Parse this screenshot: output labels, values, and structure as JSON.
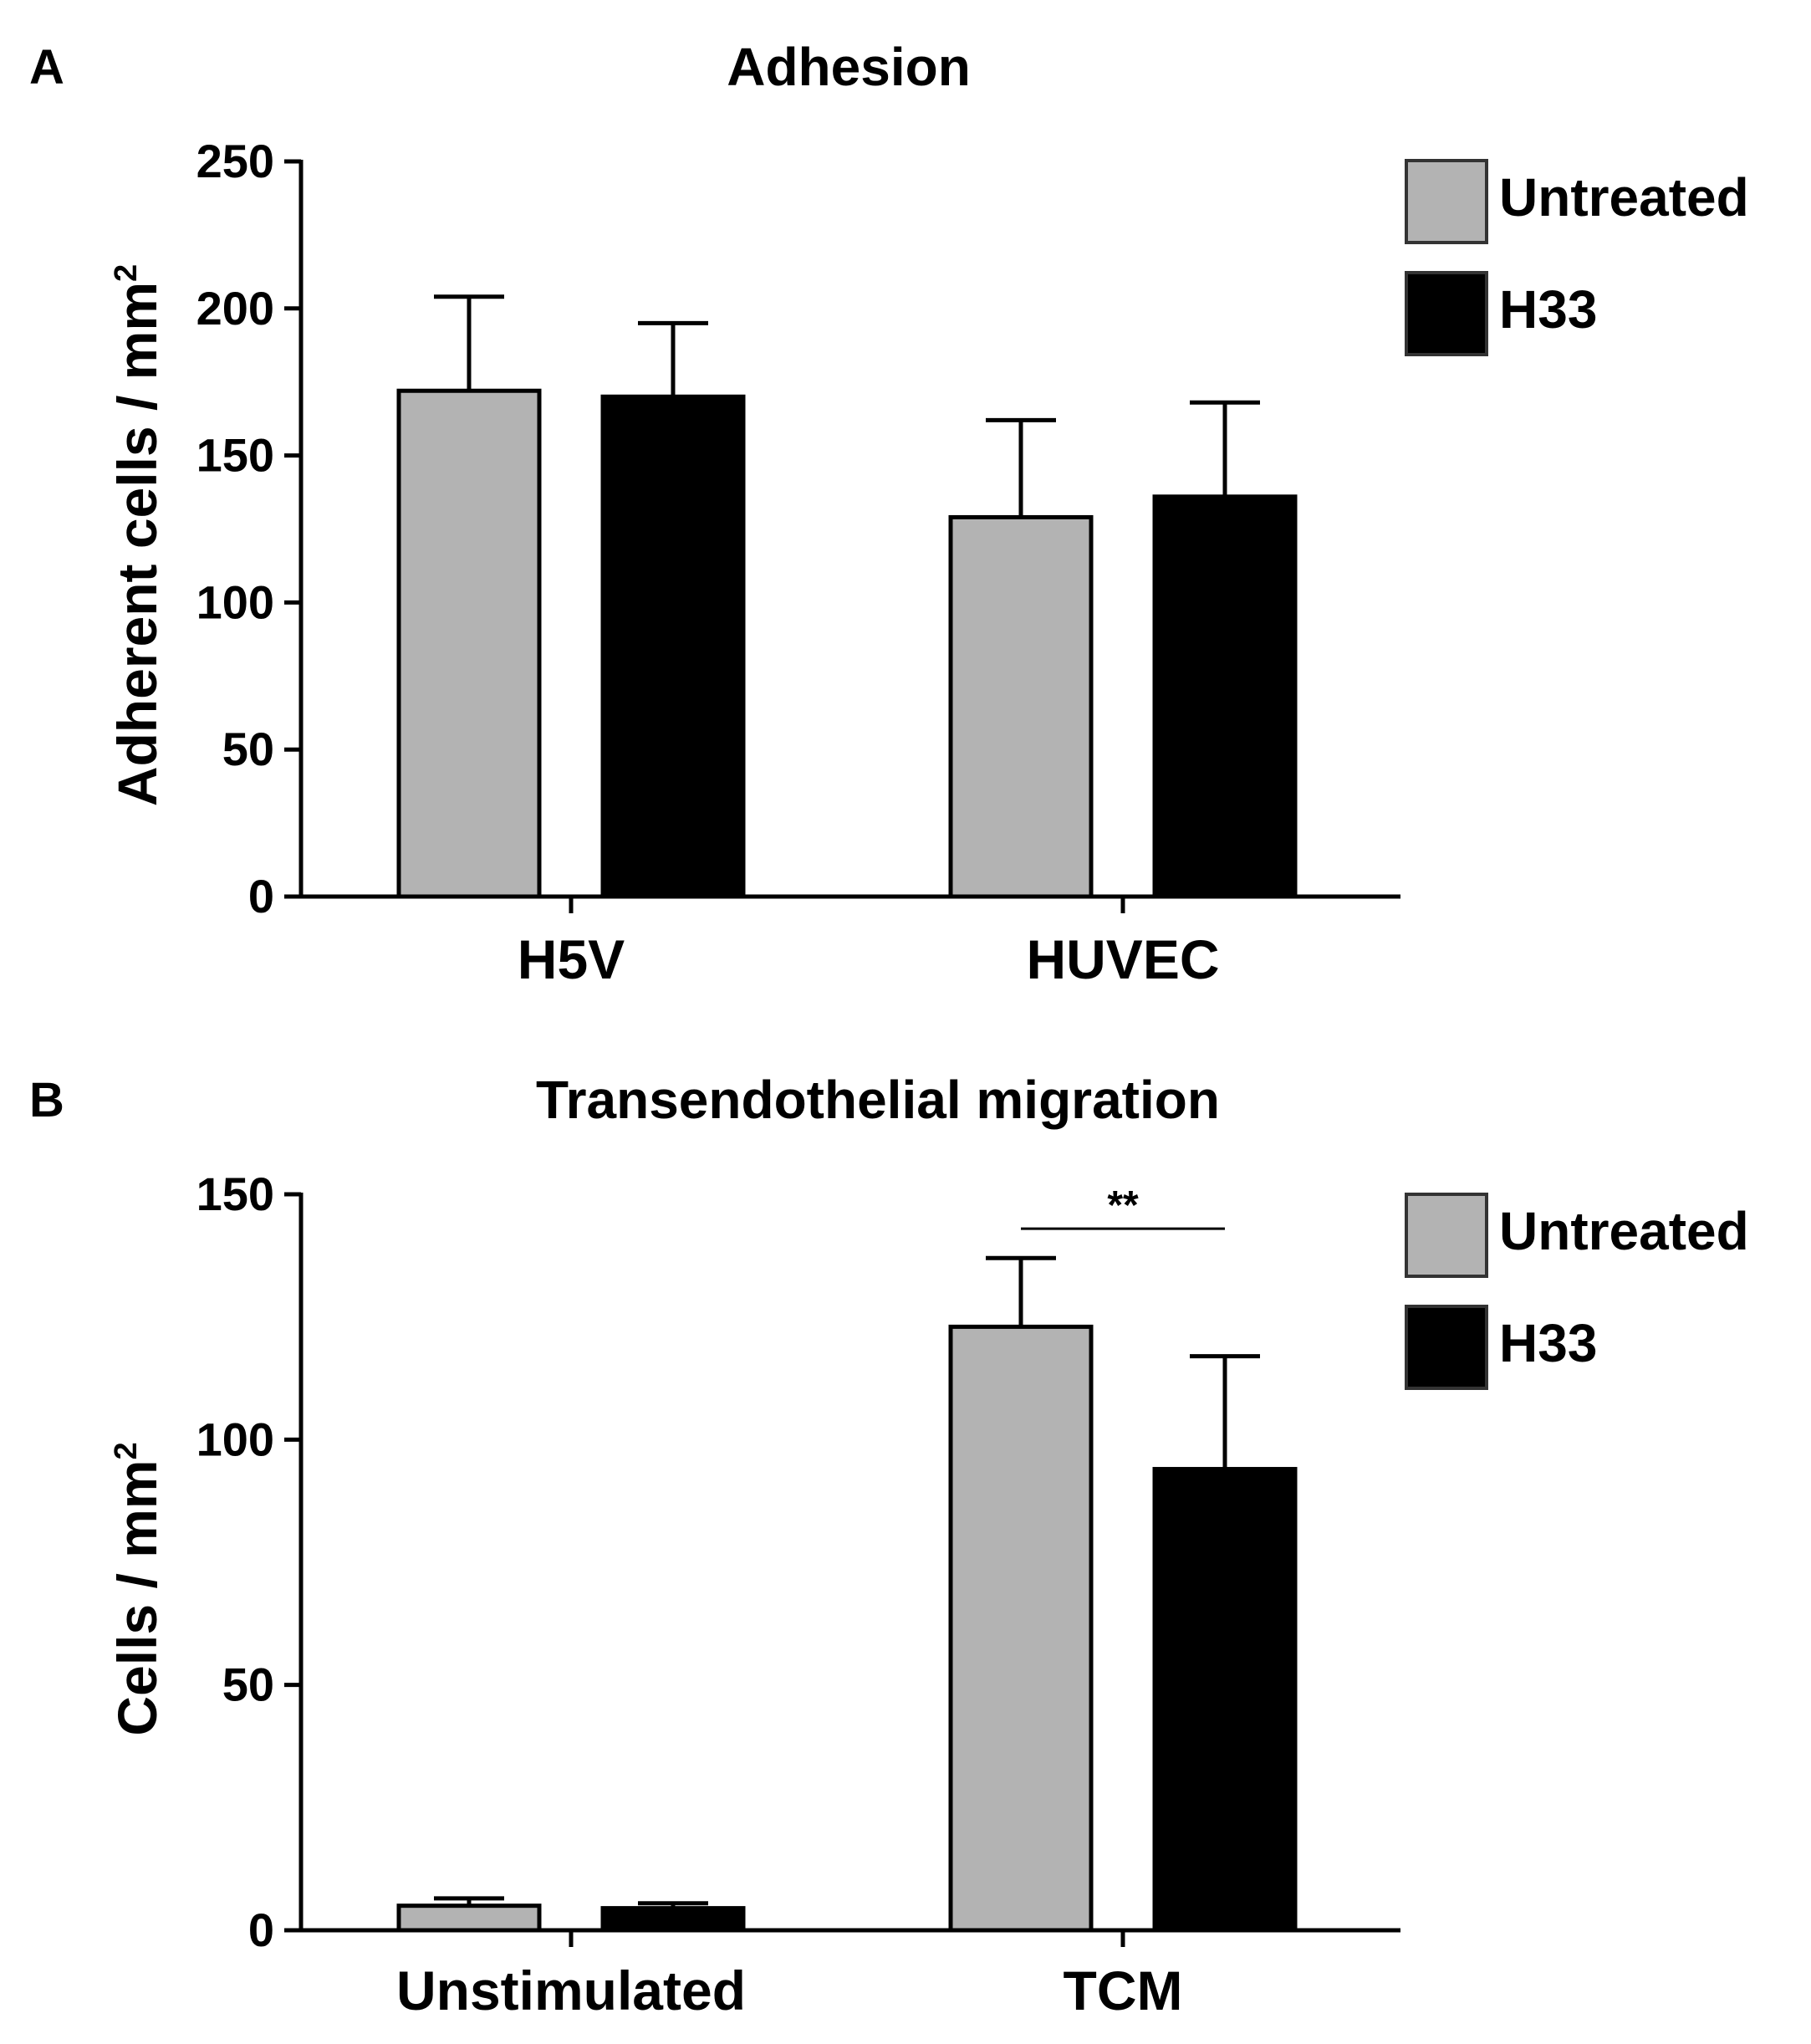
{
  "chart_data": [
    {
      "panel": "A",
      "type": "bar",
      "title": "Adhesion",
      "ylabel": "Adherent cells / mm",
      "ylabel_sup": "2",
      "xlabel": "",
      "ylim": [
        0,
        250
      ],
      "yticks": [
        0,
        50,
        100,
        150,
        200,
        250
      ],
      "categories": [
        "H5V",
        "HUVEC"
      ],
      "series": [
        {
          "name": "Untreated",
          "color": "#b3b3b3",
          "values": [
            172,
            129
          ],
          "errors": [
            32,
            33
          ]
        },
        {
          "name": "H33",
          "color": "#000000",
          "values": [
            170,
            136
          ],
          "errors": [
            25,
            32
          ]
        }
      ],
      "annotations": [],
      "legend": "top-right"
    },
    {
      "panel": "B",
      "type": "bar",
      "title": "Transendothelial migration",
      "ylabel": "Cells / mm",
      "ylabel_sup": "2",
      "xlabel": "",
      "ylim": [
        0,
        150
      ],
      "yticks": [
        0,
        50,
        100,
        150
      ],
      "categories": [
        "Unstimulated",
        "TCM"
      ],
      "series": [
        {
          "name": "Untreated",
          "color": "#b3b3b3",
          "values": [
            5,
            123
          ],
          "errors": [
            1.5,
            14
          ]
        },
        {
          "name": "H33",
          "color": "#000000",
          "values": [
            4.5,
            94
          ],
          "errors": [
            1,
            23
          ]
        }
      ],
      "annotations": [
        {
          "text": "**",
          "category": "TCM",
          "between": [
            "Untreated",
            "H33"
          ],
          "at_value": 143
        }
      ],
      "legend": "top-right"
    }
  ]
}
